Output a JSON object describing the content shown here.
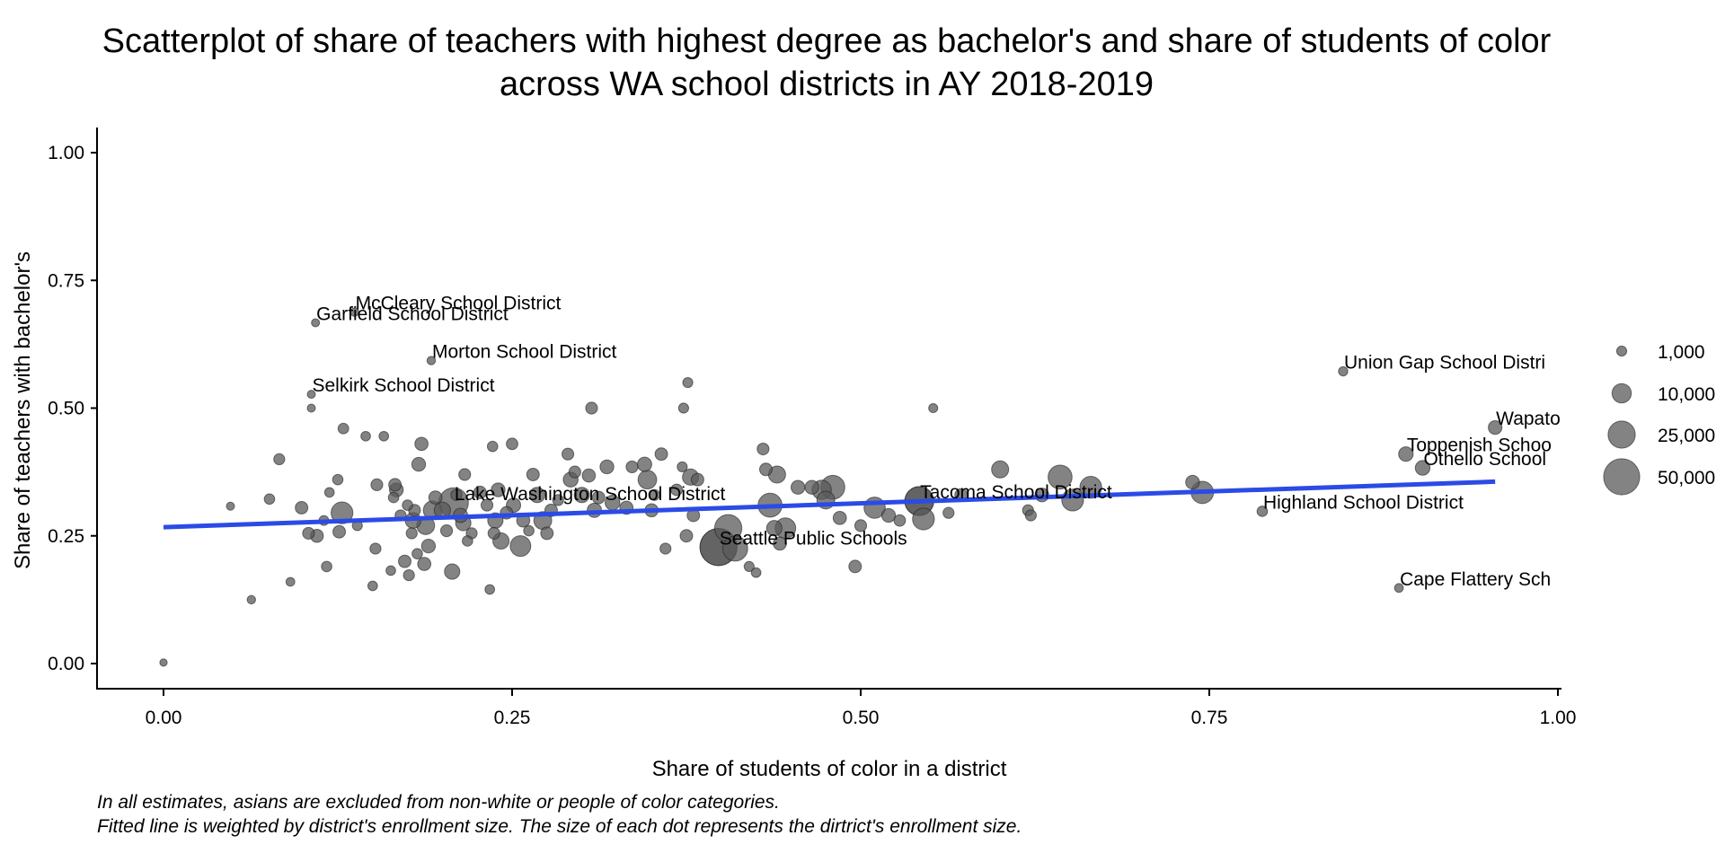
{
  "chart_data": {
    "type": "scatter",
    "title_line1": "Scatterplot of share of teachers with highest degree as bachelor's and share of students of color",
    "title_line2": "across WA school districts in AY 2018-2019",
    "xlabel": "Share of students of color in a district",
    "ylabel": "Share of teachers with bachelor's",
    "xlim": [
      0,
      1
    ],
    "ylim": [
      0,
      1
    ],
    "xticks": [
      "0.00",
      "0.25",
      "0.50",
      "0.75",
      "1.00"
    ],
    "yticks": [
      "0.00",
      "0.25",
      "0.50",
      "0.75",
      "1.00"
    ],
    "grid": false,
    "legend": {
      "placement": "right",
      "entries": [
        {
          "label": "1,000",
          "size": 1000
        },
        {
          "label": "10,000",
          "size": 10000
        },
        {
          "label": "25,000",
          "size": 25000
        },
        {
          "label": "50,000",
          "size": 50000
        }
      ]
    },
    "point_color": "#595959",
    "point_opacity": 0.75,
    "fit_line": {
      "color": "#2b4be6",
      "x": [
        0.0,
        0.955
      ],
      "y": [
        0.267,
        0.356
      ]
    },
    "labeled_points": [
      {
        "label": "McCleary School District",
        "x": 0.137,
        "y": 0.688,
        "size": 400
      },
      {
        "label": "Garfield School District",
        "x": 0.109,
        "y": 0.667,
        "size": 300
      },
      {
        "label": "Morton School District",
        "x": 0.192,
        "y": 0.593,
        "size": 400
      },
      {
        "label": "Selkirk School District",
        "x": 0.106,
        "y": 0.527,
        "size": 300
      },
      {
        "label": "Lake Washington School District",
        "x": 0.208,
        "y": 0.315,
        "size": 31000
      },
      {
        "label": "Seattle Public Schools",
        "x": 0.398,
        "y": 0.228,
        "size": 53000
      },
      {
        "label": "Tacoma School District",
        "x": 0.542,
        "y": 0.318,
        "size": 29000
      },
      {
        "label": "Highland School District",
        "x": 0.788,
        "y": 0.298,
        "size": 1200
      },
      {
        "label": "Union Gap School Distri",
        "x": 0.846,
        "y": 0.572,
        "size": 700
      },
      {
        "label": "Wapato",
        "x": 0.955,
        "y": 0.462,
        "size": 3400
      },
      {
        "label": "Toppenish Schoo",
        "x": 0.891,
        "y": 0.41,
        "size": 4200
      },
      {
        "label": "Othello School",
        "x": 0.903,
        "y": 0.383,
        "size": 4300
      },
      {
        "label": "Cape Flattery Sch",
        "x": 0.886,
        "y": 0.148,
        "size": 500
      }
    ],
    "points": [
      {
        "x": 0.0,
        "y": 0.002,
        "size": 150
      },
      {
        "x": 0.048,
        "y": 0.308,
        "size": 300
      },
      {
        "x": 0.063,
        "y": 0.125,
        "size": 400
      },
      {
        "x": 0.076,
        "y": 0.322,
        "size": 1200
      },
      {
        "x": 0.083,
        "y": 0.4,
        "size": 1500
      },
      {
        "x": 0.091,
        "y": 0.16,
        "size": 500
      },
      {
        "x": 0.099,
        "y": 0.305,
        "size": 2500
      },
      {
        "x": 0.104,
        "y": 0.255,
        "size": 2000
      },
      {
        "x": 0.106,
        "y": 0.5,
        "size": 300
      },
      {
        "x": 0.11,
        "y": 0.25,
        "size": 2800
      },
      {
        "x": 0.115,
        "y": 0.28,
        "size": 900
      },
      {
        "x": 0.117,
        "y": 0.19,
        "size": 1200
      },
      {
        "x": 0.119,
        "y": 0.335,
        "size": 800
      },
      {
        "x": 0.125,
        "y": 0.36,
        "size": 1200
      },
      {
        "x": 0.126,
        "y": 0.258,
        "size": 2500
      },
      {
        "x": 0.128,
        "y": 0.295,
        "size": 14000
      },
      {
        "x": 0.129,
        "y": 0.46,
        "size": 1300
      },
      {
        "x": 0.139,
        "y": 0.27,
        "size": 1000
      },
      {
        "x": 0.145,
        "y": 0.445,
        "size": 800
      },
      {
        "x": 0.15,
        "y": 0.152,
        "size": 800
      },
      {
        "x": 0.152,
        "y": 0.225,
        "size": 1500
      },
      {
        "x": 0.153,
        "y": 0.35,
        "size": 2000
      },
      {
        "x": 0.158,
        "y": 0.445,
        "size": 800
      },
      {
        "x": 0.163,
        "y": 0.182,
        "size": 800
      },
      {
        "x": 0.165,
        "y": 0.325,
        "size": 1200
      },
      {
        "x": 0.166,
        "y": 0.35,
        "size": 2500
      },
      {
        "x": 0.167,
        "y": 0.34,
        "size": 3500
      },
      {
        "x": 0.17,
        "y": 0.29,
        "size": 1500
      },
      {
        "x": 0.173,
        "y": 0.2,
        "size": 2500
      },
      {
        "x": 0.175,
        "y": 0.31,
        "size": 1200
      },
      {
        "x": 0.176,
        "y": 0.173,
        "size": 1500
      },
      {
        "x": 0.178,
        "y": 0.255,
        "size": 1500
      },
      {
        "x": 0.179,
        "y": 0.28,
        "size": 5500
      },
      {
        "x": 0.18,
        "y": 0.3,
        "size": 2000
      },
      {
        "x": 0.182,
        "y": 0.215,
        "size": 1200
      },
      {
        "x": 0.183,
        "y": 0.39,
        "size": 3500
      },
      {
        "x": 0.185,
        "y": 0.43,
        "size": 3000
      },
      {
        "x": 0.187,
        "y": 0.195,
        "size": 3000
      },
      {
        "x": 0.188,
        "y": 0.27,
        "size": 8000
      },
      {
        "x": 0.19,
        "y": 0.23,
        "size": 3500
      },
      {
        "x": 0.193,
        "y": 0.3,
        "size": 9000
      },
      {
        "x": 0.195,
        "y": 0.325,
        "size": 3000
      },
      {
        "x": 0.2,
        "y": 0.3,
        "size": 6000
      },
      {
        "x": 0.203,
        "y": 0.26,
        "size": 2000
      },
      {
        "x": 0.207,
        "y": 0.18,
        "size": 5000
      },
      {
        "x": 0.21,
        "y": 0.33,
        "size": 1500
      },
      {
        "x": 0.213,
        "y": 0.29,
        "size": 4000
      },
      {
        "x": 0.215,
        "y": 0.275,
        "size": 5000
      },
      {
        "x": 0.216,
        "y": 0.37,
        "size": 2000
      },
      {
        "x": 0.218,
        "y": 0.24,
        "size": 1200
      },
      {
        "x": 0.221,
        "y": 0.255,
        "size": 1500
      },
      {
        "x": 0.227,
        "y": 0.335,
        "size": 2500
      },
      {
        "x": 0.232,
        "y": 0.31,
        "size": 2000
      },
      {
        "x": 0.234,
        "y": 0.145,
        "size": 800
      },
      {
        "x": 0.236,
        "y": 0.425,
        "size": 1200
      },
      {
        "x": 0.237,
        "y": 0.255,
        "size": 2000
      },
      {
        "x": 0.238,
        "y": 0.28,
        "size": 5000
      },
      {
        "x": 0.24,
        "y": 0.34,
        "size": 3500
      },
      {
        "x": 0.242,
        "y": 0.24,
        "size": 6000
      },
      {
        "x": 0.246,
        "y": 0.295,
        "size": 2500
      },
      {
        "x": 0.25,
        "y": 0.43,
        "size": 1800
      },
      {
        "x": 0.251,
        "y": 0.31,
        "size": 4000
      },
      {
        "x": 0.256,
        "y": 0.23,
        "size": 12000
      },
      {
        "x": 0.258,
        "y": 0.28,
        "size": 3000
      },
      {
        "x": 0.262,
        "y": 0.26,
        "size": 1200
      },
      {
        "x": 0.265,
        "y": 0.37,
        "size": 2500
      },
      {
        "x": 0.268,
        "y": 0.33,
        "size": 5000
      },
      {
        "x": 0.272,
        "y": 0.28,
        "size": 8000
      },
      {
        "x": 0.275,
        "y": 0.255,
        "size": 2500
      },
      {
        "x": 0.278,
        "y": 0.3,
        "size": 2500
      },
      {
        "x": 0.283,
        "y": 0.32,
        "size": 1500
      },
      {
        "x": 0.29,
        "y": 0.41,
        "size": 2000
      },
      {
        "x": 0.292,
        "y": 0.36,
        "size": 4500
      },
      {
        "x": 0.295,
        "y": 0.375,
        "size": 2000
      },
      {
        "x": 0.3,
        "y": 0.33,
        "size": 5000
      },
      {
        "x": 0.305,
        "y": 0.368,
        "size": 3000
      },
      {
        "x": 0.307,
        "y": 0.5,
        "size": 2000
      },
      {
        "x": 0.309,
        "y": 0.3,
        "size": 4000
      },
      {
        "x": 0.312,
        "y": 0.325,
        "size": 2500
      },
      {
        "x": 0.318,
        "y": 0.385,
        "size": 3500
      },
      {
        "x": 0.322,
        "y": 0.315,
        "size": 4500
      },
      {
        "x": 0.332,
        "y": 0.305,
        "size": 3000
      },
      {
        "x": 0.336,
        "y": 0.385,
        "size": 2000
      },
      {
        "x": 0.345,
        "y": 0.39,
        "size": 4000
      },
      {
        "x": 0.347,
        "y": 0.36,
        "size": 9000
      },
      {
        "x": 0.35,
        "y": 0.3,
        "size": 3000
      },
      {
        "x": 0.352,
        "y": 0.33,
        "size": 1500
      },
      {
        "x": 0.357,
        "y": 0.41,
        "size": 2500
      },
      {
        "x": 0.36,
        "y": 0.225,
        "size": 1500
      },
      {
        "x": 0.368,
        "y": 0.34,
        "size": 1800
      },
      {
        "x": 0.372,
        "y": 0.385,
        "size": 1000
      },
      {
        "x": 0.373,
        "y": 0.5,
        "size": 1000
      },
      {
        "x": 0.375,
        "y": 0.25,
        "size": 2500
      },
      {
        "x": 0.376,
        "y": 0.55,
        "size": 1000
      },
      {
        "x": 0.378,
        "y": 0.365,
        "size": 6000
      },
      {
        "x": 0.38,
        "y": 0.29,
        "size": 2500
      },
      {
        "x": 0.383,
        "y": 0.36,
        "size": 2500
      },
      {
        "x": 0.398,
        "y": 0.228,
        "size": 53000
      },
      {
        "x": 0.405,
        "y": 0.265,
        "size": 25000
      },
      {
        "x": 0.41,
        "y": 0.225,
        "size": 20000
      },
      {
        "x": 0.42,
        "y": 0.19,
        "size": 1000
      },
      {
        "x": 0.425,
        "y": 0.178,
        "size": 800
      },
      {
        "x": 0.43,
        "y": 0.42,
        "size": 2000
      },
      {
        "x": 0.432,
        "y": 0.38,
        "size": 2500
      },
      {
        "x": 0.435,
        "y": 0.31,
        "size": 18000
      },
      {
        "x": 0.438,
        "y": 0.265,
        "size": 5000
      },
      {
        "x": 0.44,
        "y": 0.37,
        "size": 7000
      },
      {
        "x": 0.442,
        "y": 0.235,
        "size": 3000
      },
      {
        "x": 0.446,
        "y": 0.265,
        "size": 12000
      },
      {
        "x": 0.455,
        "y": 0.345,
        "size": 3500
      },
      {
        "x": 0.465,
        "y": 0.345,
        "size": 3500
      },
      {
        "x": 0.472,
        "y": 0.34,
        "size": 10000
      },
      {
        "x": 0.475,
        "y": 0.32,
        "size": 8000
      },
      {
        "x": 0.48,
        "y": 0.345,
        "size": 18000
      },
      {
        "x": 0.485,
        "y": 0.285,
        "size": 3000
      },
      {
        "x": 0.496,
        "y": 0.19,
        "size": 2500
      },
      {
        "x": 0.5,
        "y": 0.27,
        "size": 2000
      },
      {
        "x": 0.51,
        "y": 0.305,
        "size": 13000
      },
      {
        "x": 0.52,
        "y": 0.29,
        "size": 3500
      },
      {
        "x": 0.528,
        "y": 0.28,
        "size": 1800
      },
      {
        "x": 0.542,
        "y": 0.318,
        "size": 29000
      },
      {
        "x": 0.545,
        "y": 0.283,
        "size": 14000
      },
      {
        "x": 0.552,
        "y": 0.5,
        "size": 600
      },
      {
        "x": 0.563,
        "y": 0.295,
        "size": 1500
      },
      {
        "x": 0.572,
        "y": 0.33,
        "size": 2500
      },
      {
        "x": 0.6,
        "y": 0.38,
        "size": 7000
      },
      {
        "x": 0.62,
        "y": 0.3,
        "size": 1500
      },
      {
        "x": 0.622,
        "y": 0.29,
        "size": 1500
      },
      {
        "x": 0.63,
        "y": 0.33,
        "size": 3500
      },
      {
        "x": 0.643,
        "y": 0.365,
        "size": 18000
      },
      {
        "x": 0.652,
        "y": 0.32,
        "size": 14000
      },
      {
        "x": 0.665,
        "y": 0.345,
        "size": 14000
      },
      {
        "x": 0.738,
        "y": 0.355,
        "size": 3500
      },
      {
        "x": 0.745,
        "y": 0.335,
        "size": 15000
      }
    ]
  },
  "captions": [
    "In all estimates, asians are excluded from non-white or people of color categories.",
    "Fitted line is weighted by district's enrollment size. The size of each dot represents the dirtrict's enrollment size."
  ]
}
